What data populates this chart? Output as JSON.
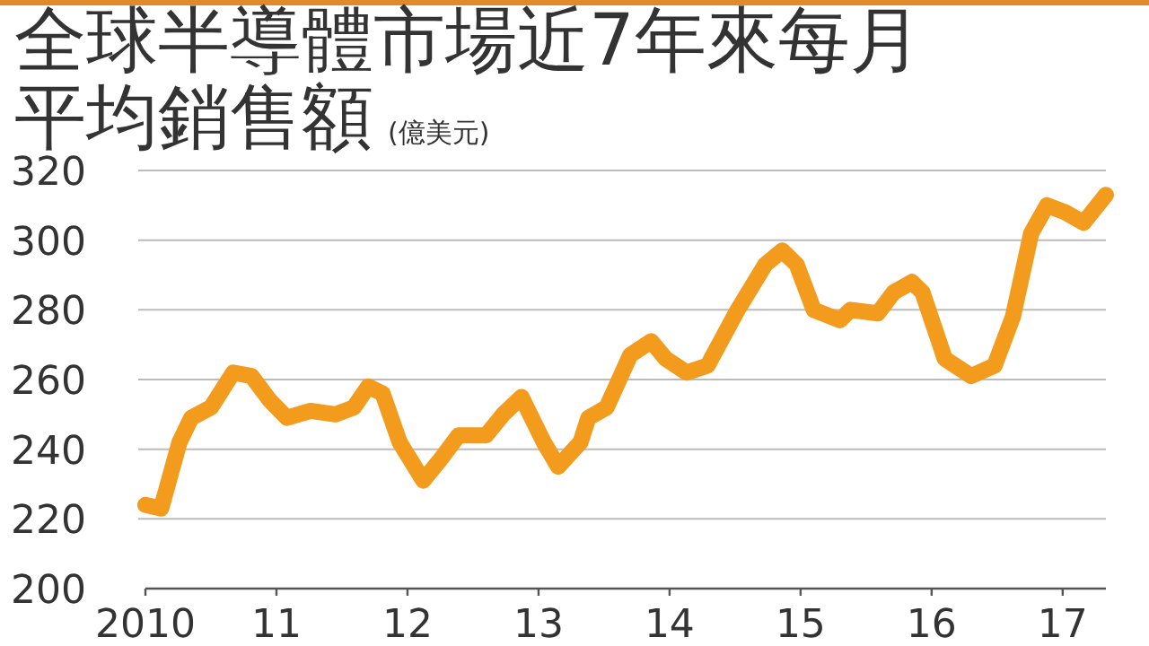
{
  "chart_data": {
    "type": "line",
    "title": "全球半導體市場近7年來每月平均銷售額",
    "subtitle": "(億美元)",
    "series": [
      {
        "color": "#f29b1c",
        "x": [
          2010.0,
          2010.12,
          2010.26,
          2010.35,
          2010.5,
          2010.67,
          2010.81,
          2010.95,
          2011.08,
          2011.26,
          2011.45,
          2011.59,
          2011.7,
          2011.81,
          2011.94,
          2012.12,
          2012.25,
          2012.39,
          2012.6,
          2012.73,
          2012.87,
          2013.04,
          2013.15,
          2013.32,
          2013.38,
          2013.52,
          2013.7,
          2013.86,
          2013.97,
          2014.13,
          2014.29,
          2014.52,
          2014.73,
          2014.86,
          2014.97,
          2015.1,
          2015.3,
          2015.38,
          2015.59,
          2015.71,
          2015.85,
          2015.93,
          2016.1,
          2016.3,
          2016.48,
          2016.62,
          2016.76,
          2016.88,
          2017.02,
          2017.16,
          2017.33
        ],
        "values": [
          224,
          223,
          242,
          249,
          252,
          262,
          261,
          254,
          249,
          251,
          250,
          252,
          258,
          256,
          242,
          231,
          237,
          244,
          244,
          250,
          255,
          242,
          235,
          242,
          249,
          252,
          267,
          271,
          266,
          262,
          264,
          280,
          293,
          297,
          293,
          280,
          277,
          280,
          279,
          285,
          288,
          285,
          266,
          261,
          264,
          278,
          302,
          310,
          308,
          305,
          313
        ]
      }
    ],
    "xlim": [
      2010,
      2017.33
    ],
    "ylim": [
      200,
      320
    ],
    "xticks": [
      {
        "value": 2010,
        "label": "2010"
      },
      {
        "value": 2011,
        "label": "11"
      },
      {
        "value": 2012,
        "label": "12"
      },
      {
        "value": 2013,
        "label": "13"
      },
      {
        "value": 2014,
        "label": "14"
      },
      {
        "value": 2015,
        "label": "15"
      },
      {
        "value": 2016,
        "label": "16"
      },
      {
        "value": 2017,
        "label": "17"
      }
    ],
    "yticks": [
      200,
      220,
      240,
      260,
      280,
      300,
      320
    ],
    "grid": "y",
    "line_style": "solid"
  }
}
